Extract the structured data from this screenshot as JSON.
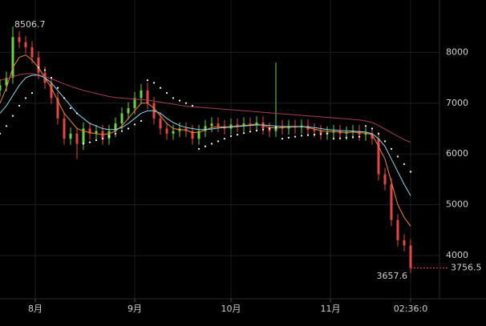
{
  "chart_data": {
    "type": "candlestick",
    "x": [
      20,
      22,
      24,
      26,
      28,
      30,
      32,
      34,
      36,
      38,
      40,
      42,
      44,
      46,
      48,
      50,
      52,
      54,
      56,
      58,
      60,
      62,
      64,
      66,
      68,
      70,
      72,
      74,
      76,
      78,
      80,
      82,
      84,
      86,
      88,
      90,
      92,
      94,
      96,
      98,
      100,
      102,
      104,
      106,
      108,
      110,
      112,
      114,
      116,
      118,
      120,
      122,
      124,
      126,
      128,
      130,
      132,
      134,
      136,
      138,
      140,
      142,
      144,
      146,
      148
    ],
    "open": [
      7250,
      7350,
      7500,
      8300,
      8200,
      8100,
      7900,
      7600,
      7400,
      7100,
      6700,
      6300,
      6400,
      6200,
      6500,
      6400,
      6450,
      6300,
      6450,
      6600,
      6800,
      6900,
      7100,
      7250,
      7000,
      6700,
      6500,
      6400,
      6450,
      6500,
      6450,
      6300,
      6450,
      6550,
      6600,
      6550,
      6500,
      6580,
      6550,
      6600,
      6580,
      6620,
      6500,
      6450,
      6550,
      6500,
      6550,
      6520,
      6560,
      6480,
      6450,
      6400,
      6420,
      6450,
      6400,
      6420,
      6450,
      6380,
      6400,
      6300,
      5600,
      5400,
      4700,
      4300,
      4200
    ],
    "high": [
      7470,
      7620,
      8506.7,
      8420,
      8320,
      8220,
      8020,
      7720,
      7520,
      7220,
      6820,
      6520,
      6520,
      6620,
      6620,
      6570,
      6570,
      6570,
      6720,
      6920,
      7020,
      7220,
      7370,
      7400,
      7120,
      6820,
      6620,
      6570,
      6620,
      6620,
      6570,
      6570,
      6670,
      6720,
      6720,
      6670,
      6700,
      6700,
      6720,
      6720,
      6740,
      6740,
      6620,
      7800,
      6670,
      6670,
      6670,
      6680,
      6680,
      6600,
      6570,
      6540,
      6570,
      6570,
      6540,
      6570,
      6570,
      6520,
      6520,
      6420,
      5720,
      5520,
      4820,
      4420,
      4320
    ],
    "low": [
      7130,
      7230,
      7380,
      8080,
      7980,
      7780,
      7480,
      7280,
      6980,
      6580,
      6180,
      6180,
      5900,
      6080,
      6280,
      6280,
      6180,
      6180,
      6330,
      6480,
      6680,
      6780,
      6980,
      6880,
      6580,
      6380,
      6280,
      6280,
      6330,
      6330,
      6180,
      6180,
      6330,
      6430,
      6430,
      6380,
      6380,
      6430,
      6430,
      6460,
      6460,
      6380,
      6330,
      6330,
      6380,
      6380,
      6400,
      6400,
      6360,
      6330,
      6280,
      6280,
      6300,
      6280,
      6280,
      6300,
      6260,
      6260,
      6180,
      5480,
      5280,
      4580,
      4180,
      4080,
      3657.6
    ],
    "close": [
      7350,
      7500,
      8300,
      8200,
      8100,
      7900,
      7600,
      7400,
      7100,
      6700,
      6300,
      6400,
      6200,
      6500,
      6400,
      6450,
      6300,
      6450,
      6600,
      6800,
      6900,
      7100,
      7250,
      7000,
      6700,
      6500,
      6400,
      6450,
      6500,
      6450,
      6300,
      6450,
      6550,
      6600,
      6550,
      6500,
      6580,
      6550,
      6600,
      6580,
      6620,
      6500,
      6450,
      6550,
      6500,
      6550,
      6520,
      6560,
      6480,
      6450,
      6400,
      6420,
      6450,
      6400,
      6420,
      6450,
      6380,
      6400,
      6300,
      5600,
      5400,
      4700,
      4300,
      4200,
      3756.5
    ],
    "up_color": "#6fcf4a",
    "down_color": "#e04848",
    "overlays": [
      {
        "color": "#e8893a",
        "values": [
          7000,
          7300,
          7700,
          7900,
          7950,
          7850,
          7700,
          7500,
          7300,
          7050,
          6800,
          6650,
          6500,
          6450,
          6420,
          6400,
          6380,
          6400,
          6450,
          6550,
          6700,
          6850,
          7000,
          7000,
          6900,
          6750,
          6600,
          6500,
          6480,
          6470,
          6420,
          6430,
          6470,
          6520,
          6540,
          6530,
          6540,
          6550,
          6560,
          6570,
          6590,
          6560,
          6520,
          6510,
          6520,
          6530,
          6530,
          6540,
          6520,
          6490,
          6460,
          6440,
          6440,
          6430,
          6420,
          6430,
          6420,
          6410,
          6380,
          6150,
          5900,
          5450,
          5000,
          4750,
          4580
        ]
      },
      {
        "color": "#8fd3e8",
        "values": [
          6800,
          6950,
          7150,
          7350,
          7500,
          7550,
          7550,
          7500,
          7400,
          7250,
          7100,
          6950,
          6800,
          6700,
          6600,
          6550,
          6500,
          6480,
          6480,
          6520,
          6600,
          6700,
          6800,
          6850,
          6850,
          6800,
          6700,
          6620,
          6560,
          6520,
          6500,
          6480,
          6480,
          6490,
          6510,
          6520,
          6530,
          6540,
          6550,
          6560,
          6570,
          6570,
          6560,
          6550,
          6540,
          6540,
          6540,
          6540,
          6530,
          6520,
          6500,
          6480,
          6470,
          6460,
          6450,
          6450,
          6440,
          6430,
          6400,
          6300,
          6150,
          5900,
          5650,
          5400,
          5180
        ]
      },
      {
        "color": "#a0405a",
        "values": [
          7450,
          7480,
          7520,
          7560,
          7580,
          7580,
          7560,
          7520,
          7480,
          7430,
          7380,
          7330,
          7290,
          7250,
          7220,
          7190,
          7160,
          7130,
          7110,
          7100,
          7090,
          7080,
          7070,
          7060,
          7040,
          7020,
          7000,
          6980,
          6960,
          6940,
          6930,
          6920,
          6910,
          6900,
          6890,
          6880,
          6870,
          6860,
          6850,
          6840,
          6830,
          6820,
          6810,
          6800,
          6790,
          6780,
          6770,
          6760,
          6750,
          6740,
          6730,
          6720,
          6710,
          6700,
          6690,
          6680,
          6670,
          6650,
          6620,
          6560,
          6490,
          6420,
          6350,
          6280,
          6230
        ]
      }
    ],
    "sar": {
      "color": "#ffffff",
      "values": [
        6400,
        6550,
        6750,
        6950,
        7100,
        7200,
        7700,
        7650,
        7500,
        7300,
        7100,
        6900,
        6800,
        6200,
        6230,
        6270,
        6300,
        6350,
        6400,
        6450,
        6500,
        6580,
        6650,
        7450,
        7400,
        7300,
        7200,
        7100,
        7050,
        7000,
        6950,
        6100,
        6150,
        6200,
        6250,
        6300,
        6350,
        6380,
        6410,
        6440,
        6460,
        6480,
        6500,
        6520,
        6300,
        6320,
        6340,
        6360,
        6370,
        6380,
        6390,
        6400,
        6300,
        6310,
        6320,
        6330,
        6340,
        6550,
        6500,
        6400,
        6250,
        6100,
        5950,
        5800,
        5650
      ]
    },
    "xlim": [
      20,
      157
    ],
    "xticks": [
      {
        "value": 31,
        "label": "8月"
      },
      {
        "value": 62,
        "label": "9月"
      },
      {
        "value": 92,
        "label": "10月"
      },
      {
        "value": 123,
        "label": "11月"
      },
      {
        "value": 148,
        "label": "02:36:0"
      }
    ],
    "ylim": [
      3150,
      9030
    ],
    "yticks": [
      4000,
      5000,
      6000,
      7000,
      8000
    ],
    "grid": true
  }
}
